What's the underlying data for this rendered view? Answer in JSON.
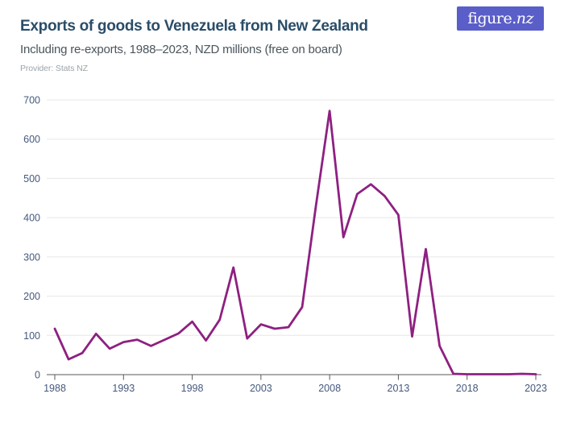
{
  "header": {
    "title": "Exports of goods to Venezuela from New Zealand",
    "subtitle": "Including re-exports, 1988–2023, NZD millions (free on board)",
    "provider": "Provider: Stats NZ"
  },
  "logo": {
    "prefix": "figure.",
    "suffix": "nz"
  },
  "colors": {
    "line": "#8e2081",
    "title_text": "#2a4d68",
    "subtitle_text": "#4a555c",
    "provider_text": "#9aa4ab",
    "axis_label": "#45597c",
    "gridline": "#e7e7ea",
    "axis_line": "#58595b",
    "logo_bg": "#5a5ec8",
    "logo_text": "#ffffff"
  },
  "chart_data": {
    "type": "line",
    "title": "Exports of goods to Venezuela from New Zealand",
    "subtitle": "Including re-exports, 1988–2023, NZD millions (free on board)",
    "provider": "Stats NZ",
    "units": "NZD millions (free on board)",
    "xlabel": "",
    "ylabel": "",
    "ylim": [
      0,
      700
    ],
    "yticks": [
      0,
      100,
      200,
      300,
      400,
      500,
      600,
      700
    ],
    "xticks": [
      1988,
      1993,
      1998,
      2003,
      2008,
      2013,
      2018,
      2023
    ],
    "grid": true,
    "legend": false,
    "x": [
      1988,
      1989,
      1990,
      1991,
      1992,
      1993,
      1994,
      1995,
      1996,
      1997,
      1998,
      1999,
      2000,
      2001,
      2002,
      2003,
      2004,
      2005,
      2006,
      2007,
      2008,
      2009,
      2010,
      2011,
      2012,
      2013,
      2014,
      2015,
      2016,
      2017,
      2018,
      2019,
      2020,
      2021,
      2022,
      2023
    ],
    "values": [
      117,
      39,
      55,
      104,
      66,
      83,
      89,
      73,
      89,
      105,
      135,
      87,
      140,
      273,
      92,
      128,
      117,
      121,
      172,
      430,
      672,
      350,
      460,
      485,
      455,
      407,
      97,
      320,
      73,
      2,
      1,
      1,
      1,
      1,
      2,
      1
    ]
  }
}
